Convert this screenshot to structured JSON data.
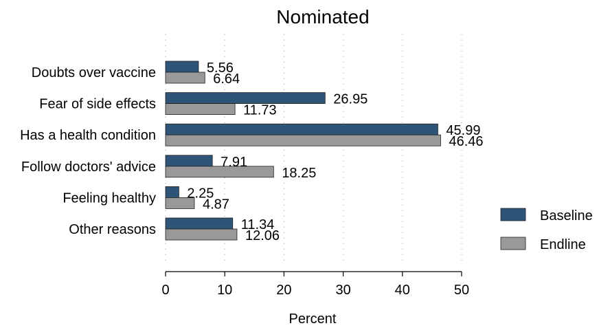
{
  "chart_data": {
    "type": "bar",
    "orientation": "horizontal",
    "title": "Nominated",
    "xlabel": "Percent",
    "ylabel": "",
    "xlim": [
      0,
      50
    ],
    "xticks": [
      0,
      10,
      20,
      30,
      40,
      50
    ],
    "grid": "vertical dotted",
    "legend_position": "right",
    "categories": [
      "Doubts over vaccine",
      "Fear of side effects",
      "Has a health condition",
      "Follow doctors' advice",
      "Feeling healthy",
      "Other reasons"
    ],
    "series": [
      {
        "name": "Baseline",
        "color": "#2e5478",
        "values": [
          5.56,
          26.95,
          45.99,
          7.91,
          2.25,
          11.34
        ],
        "labels": [
          "5.56",
          "26.95",
          "45.99",
          "7.91",
          "2.25",
          "11.34"
        ]
      },
      {
        "name": "Endline",
        "color": "#999999",
        "values": [
          6.64,
          11.73,
          46.46,
          18.25,
          4.87,
          12.06
        ],
        "labels": [
          "6.64",
          "11.73",
          "46.46",
          "18.25",
          "4.87",
          "12.06"
        ]
      }
    ]
  }
}
